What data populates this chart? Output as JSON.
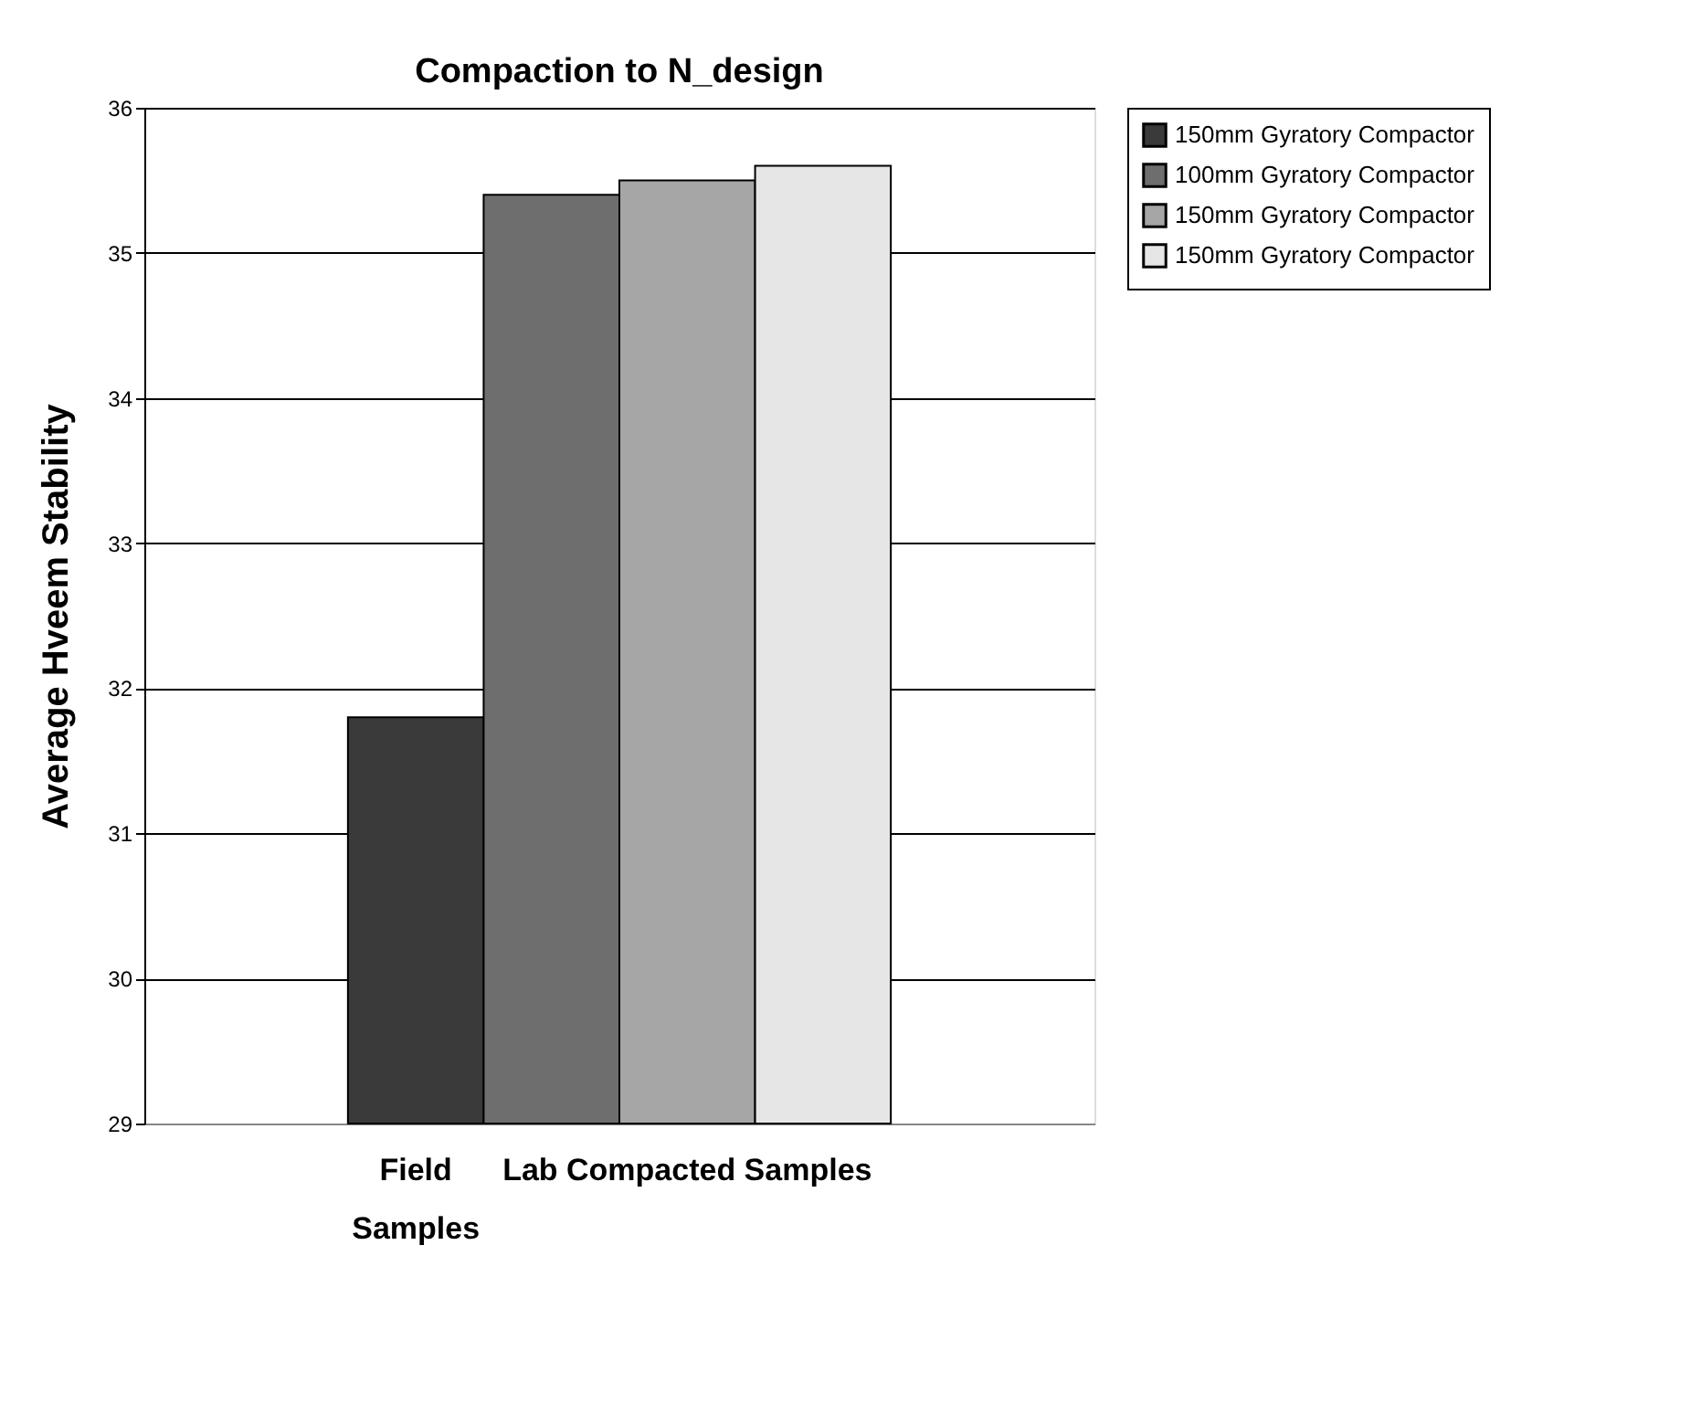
{
  "chart_data": {
    "type": "bar",
    "title": "Compaction to N_design",
    "ylabel": "Average Hveem Stability",
    "categories": [
      "Field Samples",
      "Lab Compacted Samples"
    ],
    "series": [
      {
        "name": "150mm Gyratory Compactor",
        "color": "#3a3a3a",
        "values": [
          31.8,
          null
        ]
      },
      {
        "name": "100mm Gyratory Compactor",
        "color": "#6e6e6e",
        "values": [
          null,
          35.4
        ]
      },
      {
        "name": "150mm Gyratory Compactor",
        "color": "#a6a6a6",
        "values": [
          null,
          35.5
        ]
      },
      {
        "name": "150mm Gyratory Compactor",
        "color": "#e6e6e6",
        "values": [
          null,
          35.6
        ]
      }
    ],
    "ylim": [
      29,
      36
    ],
    "yticks": [
      29,
      30,
      31,
      32,
      33,
      34,
      35,
      36
    ],
    "grid": "y",
    "legend": "right"
  }
}
